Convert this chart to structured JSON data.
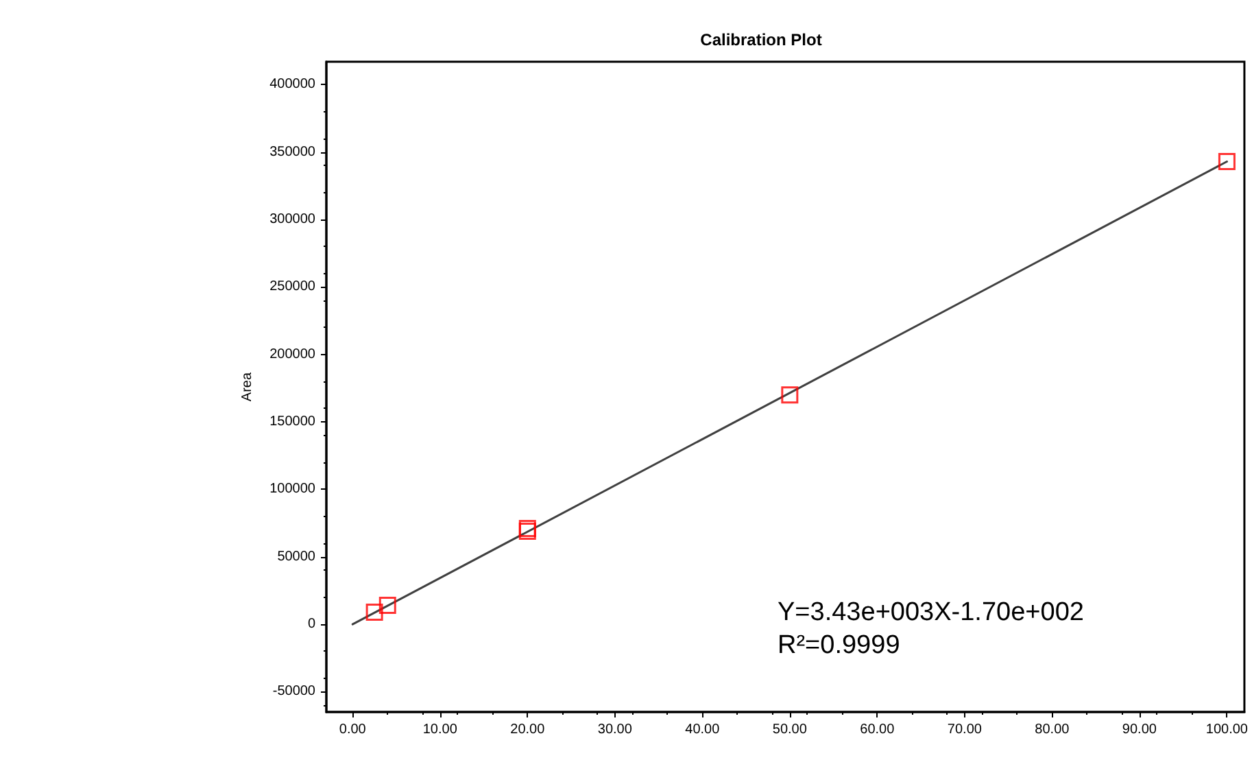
{
  "chart_data": {
    "type": "scatter",
    "title": "Calibration Plot",
    "ylabel": "Area",
    "xlim": [
      -3,
      102
    ],
    "ylim": [
      -65000,
      417000
    ],
    "xticks": [
      {
        "value": 0,
        "label": "0.00"
      },
      {
        "value": 10,
        "label": "10.00"
      },
      {
        "value": 20,
        "label": "20.00"
      },
      {
        "value": 30,
        "label": "30.00"
      },
      {
        "value": 40,
        "label": "40.00"
      },
      {
        "value": 50,
        "label": "50.00"
      },
      {
        "value": 60,
        "label": "60.00"
      },
      {
        "value": 70,
        "label": "70.00"
      },
      {
        "value": 80,
        "label": "80.00"
      },
      {
        "value": 90,
        "label": "90.00"
      },
      {
        "value": 100,
        "label": "100.00"
      }
    ],
    "yticks": [
      -50000,
      0,
      50000,
      100000,
      150000,
      200000,
      250000,
      300000,
      350000,
      400000
    ],
    "series": [
      {
        "type": "line",
        "color": "#404040",
        "x": [
          0,
          100
        ],
        "values": [
          0,
          343000
        ],
        "marker": "none",
        "line_style": "solid"
      },
      {
        "color": "#ff0000",
        "x": [
          2.5,
          4,
          20,
          20,
          50,
          100
        ],
        "values": [
          9000,
          14000,
          69000,
          71000,
          170000,
          343000
        ],
        "marker": "square"
      }
    ],
    "annotations": [
      "Y=3.43e+003X-1.70e+002",
      "R²=0.9999"
    ],
    "grid": false
  }
}
